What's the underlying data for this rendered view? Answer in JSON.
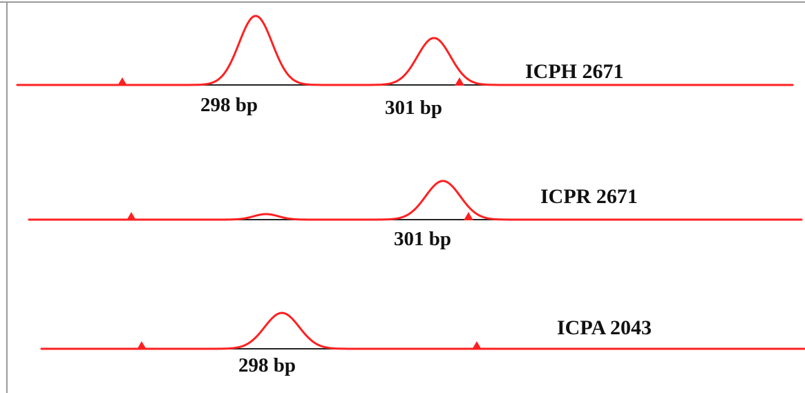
{
  "colors": {
    "trace": "#ff2020",
    "baseline": "#222222",
    "frame": "#9a9a9a",
    "text": "#111111"
  },
  "chart_data": {
    "type": "line",
    "title": "",
    "xlabel": "",
    "ylabel": "",
    "x_unit": "bp",
    "panels": [
      {
        "sample": "ICPH 2671",
        "peaks": [
          {
            "size_bp": 298,
            "label": "298 bp",
            "relative_height": 1.0
          },
          {
            "size_bp": 301,
            "label": "301 bp",
            "relative_height": 0.68
          }
        ],
        "size_markers_count": 2
      },
      {
        "sample": "ICPR 2671",
        "peaks": [
          {
            "size_bp": 301,
            "label": "301 bp",
            "relative_height": 0.56
          }
        ],
        "size_markers_count": 2
      },
      {
        "sample": "ICPA 2043",
        "peaks": [
          {
            "size_bp": 298,
            "label": "298 bp",
            "relative_height": 0.52
          }
        ],
        "size_markers_count": 2
      }
    ]
  }
}
